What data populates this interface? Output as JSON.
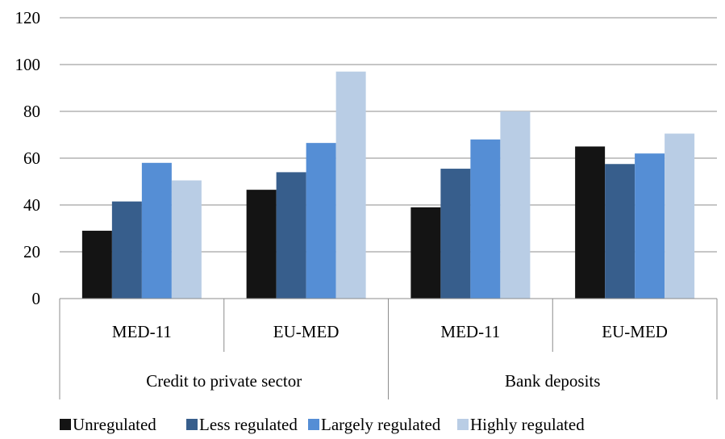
{
  "chart_data": {
    "type": "bar",
    "groups": [
      {
        "label": "Credit to private sector",
        "categories": [
          "MED-11",
          "EU-MED"
        ]
      },
      {
        "label": "Bank deposits",
        "categories": [
          "MED-11",
          "EU-MED"
        ]
      }
    ],
    "categories": [
      "MED-11",
      "EU-MED",
      "MED-11",
      "EU-MED"
    ],
    "series": [
      {
        "name": "Unregulated",
        "color": "#141414",
        "values": [
          29,
          46.5,
          39,
          65
        ]
      },
      {
        "name": "Less regulated",
        "color": "#375e8c",
        "values": [
          41.5,
          54,
          55.5,
          57.5
        ]
      },
      {
        "name": "Largely regulated",
        "color": "#558ed5",
        "values": [
          58,
          66.5,
          68,
          62
        ]
      },
      {
        "name": "Highly regulated",
        "color": "#b9cde5",
        "values": [
          50.5,
          97,
          80,
          70.5
        ]
      }
    ],
    "yticks": [
      0,
      20,
      40,
      60,
      80,
      100,
      120
    ],
    "ylim": [
      0,
      120
    ],
    "grid": true,
    "legend": "bottom",
    "title": "",
    "xlabel": "",
    "ylabel": ""
  }
}
